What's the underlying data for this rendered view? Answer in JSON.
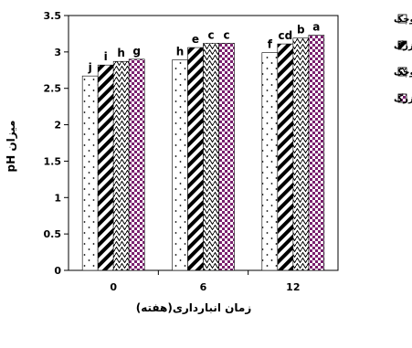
{
  "chart_data": {
    "type": "bar",
    "categories": [
      "0",
      "6",
      "12"
    ],
    "xlabel": "زمان انبارداری(هفته)",
    "ylabel": "میزان pH",
    "ylim": [
      0,
      3.5
    ],
    "yticks": [
      "0",
      "0.5",
      "1",
      "1.5",
      "2",
      "2.5",
      "3",
      "3.5"
    ],
    "grid": false,
    "legend_position": "right",
    "series": [
      {
        "name": "ماتی کوچک",
        "pattern": "dots",
        "values": [
          2.67,
          2.89,
          2.99
        ],
        "letters": [
          "j",
          "h",
          "f"
        ]
      },
      {
        "name": "ماتی بزرگ",
        "pattern": "diagonal-stripes",
        "values": [
          2.82,
          3.06,
          3.11
        ],
        "letters": [
          "i",
          "e",
          "cd"
        ]
      },
      {
        "name": "هیوارد کوچک",
        "pattern": "zigzag",
        "values": [
          2.87,
          3.12,
          3.19
        ],
        "letters": [
          "h",
          "c",
          "b"
        ]
      },
      {
        "name": "هیوارد بزرگ",
        "pattern": "checker",
        "values": [
          2.9,
          3.12,
          3.23
        ],
        "letters": [
          "g",
          "c",
          "a"
        ]
      }
    ],
    "colors": {
      "checker": "#7a1f6e",
      "ink": "#000000"
    }
  }
}
